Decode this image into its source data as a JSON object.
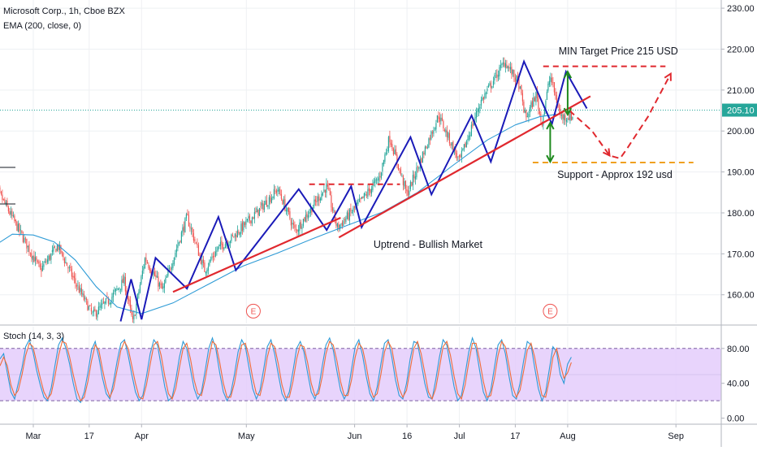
{
  "header": {
    "symbol_line": "Microsoft Corp., 1h, Cboe BZX",
    "ema_line": "EMA (200, close, 0)",
    "stoch_line": "Stoch (14, 3, 3)"
  },
  "colors": {
    "up_candle": "#26a69a",
    "down_candle": "#ef5350",
    "ema": "#2e9bd6",
    "pattern": "#1a1ab8",
    "trendline": "#e0282e",
    "support": "#f0a020",
    "target_arrow": "#1e8a1e",
    "stoch_fill": "#e4cdfb",
    "last_price_badge": "#26a69a"
  },
  "chart_data": [
    {
      "type": "candlestick",
      "title": "Microsoft Corp., 1h, Cboe BZX",
      "ylim": [
        153,
        232
      ],
      "y_ticks": [
        "230.00",
        "220.00",
        "210.00",
        "200.00",
        "190.00",
        "180.00",
        "170.00",
        "160.00"
      ],
      "y_tick_values": [
        230,
        220,
        210,
        200,
        190,
        180,
        170,
        160
      ],
      "last_price": 205.1,
      "last_price_label": "205.10",
      "x_labels": [
        "Mar",
        "17",
        "Apr",
        "May",
        "Jun",
        "16",
        "Jul",
        "17",
        "Aug",
        "Sep"
      ],
      "x_label_days": [
        0,
        16,
        31,
        61,
        92,
        107,
        122,
        138,
        153,
        184
      ],
      "price_path": [
        {
          "day": -12,
          "price": 188
        },
        {
          "day": -8,
          "price": 182
        },
        {
          "day": -3,
          "price": 174
        },
        {
          "day": 2,
          "price": 166
        },
        {
          "day": 7,
          "price": 172
        },
        {
          "day": 12,
          "price": 163
        },
        {
          "day": 17,
          "price": 155
        },
        {
          "day": 22,
          "price": 159
        },
        {
          "day": 26,
          "price": 163.5
        },
        {
          "day": 28.5,
          "price": 153
        },
        {
          "day": 32,
          "price": 169
        },
        {
          "day": 37,
          "price": 161
        },
        {
          "day": 44,
          "price": 179
        },
        {
          "day": 49,
          "price": 166
        },
        {
          "day": 53,
          "price": 171.5
        },
        {
          "day": 57,
          "price": 174
        },
        {
          "day": 65,
          "price": 181
        },
        {
          "day": 70,
          "price": 185.8
        },
        {
          "day": 75,
          "price": 175.5
        },
        {
          "day": 84,
          "price": 186.5
        },
        {
          "day": 87,
          "price": 176.3
        },
        {
          "day": 93,
          "price": 182
        },
        {
          "day": 99,
          "price": 188.5
        },
        {
          "day": 102,
          "price": 198.5
        },
        {
          "day": 107,
          "price": 184.5
        },
        {
          "day": 116,
          "price": 203.8
        },
        {
          "day": 122,
          "price": 192.5
        },
        {
          "day": 128,
          "price": 207
        },
        {
          "day": 135,
          "price": 217
        },
        {
          "day": 139,
          "price": 211.5
        },
        {
          "day": 141,
          "price": 203
        },
        {
          "day": 144,
          "price": 209
        },
        {
          "day": 145.5,
          "price": 201.7
        },
        {
          "day": 148,
          "price": 213.5
        },
        {
          "day": 151,
          "price": 203.5
        },
        {
          "day": 154.5,
          "price": 203.5
        }
      ],
      "ema": [
        {
          "day": -12,
          "price": 171.5
        },
        {
          "day": -6,
          "price": 174.8
        },
        {
          "day": 0,
          "price": 174.6
        },
        {
          "day": 6,
          "price": 172.9
        },
        {
          "day": 12,
          "price": 168.5
        },
        {
          "day": 18,
          "price": 162
        },
        {
          "day": 24,
          "price": 157
        },
        {
          "day": 31,
          "price": 155.4
        },
        {
          "day": 40,
          "price": 158
        },
        {
          "day": 50,
          "price": 162.5
        },
        {
          "day": 60,
          "price": 167
        },
        {
          "day": 70,
          "price": 170.2
        },
        {
          "day": 80,
          "price": 173.7
        },
        {
          "day": 90,
          "price": 177
        },
        {
          "day": 100,
          "price": 180.2
        },
        {
          "day": 110,
          "price": 185
        },
        {
          "day": 120,
          "price": 191.5
        },
        {
          "day": 130,
          "price": 197.8
        },
        {
          "day": 138,
          "price": 201.5
        },
        {
          "day": 145,
          "price": 203.5
        },
        {
          "day": 151,
          "price": 204.2
        }
      ],
      "annotations": {
        "zigzag": [
          {
            "day": 25,
            "price": 153.5
          },
          {
            "day": 28,
            "price": 163.8
          },
          {
            "day": 31,
            "price": 154
          },
          {
            "day": 35,
            "price": 169
          },
          {
            "day": 44,
            "price": 161.5
          },
          {
            "day": 53,
            "price": 179
          },
          {
            "day": 58,
            "price": 166
          },
          {
            "day": 76,
            "price": 185.8
          },
          {
            "day": 84,
            "price": 175.8
          },
          {
            "day": 91,
            "price": 186.5
          },
          {
            "day": 94,
            "price": 176.5
          },
          {
            "day": 108,
            "price": 198.5
          },
          {
            "day": 114,
            "price": 184.5
          },
          {
            "day": 125.5,
            "price": 203.8
          },
          {
            "day": 131,
            "price": 192.5
          },
          {
            "day": 140.5,
            "price": 217
          },
          {
            "day": 148.5,
            "price": 201.7
          },
          {
            "day": 152.5,
            "price": 214.5
          },
          {
            "day": 158.5,
            "price": 205.5
          }
        ],
        "trendline_1": [
          {
            "day": 40,
            "price": 160.7
          },
          {
            "day": 88,
            "price": 178.8
          }
        ],
        "trendline_2": [
          {
            "day": 87.5,
            "price": 174
          },
          {
            "day": 159.5,
            "price": 208.5
          }
        ],
        "resistance_1": [
          {
            "day": 79,
            "price": 187
          },
          {
            "day": 105,
            "price": 187
          }
        ],
        "target_line": [
          {
            "day": 146,
            "price": 215.8
          },
          {
            "day": 181,
            "price": 215.8
          }
        ],
        "support_line": [
          {
            "day": 143,
            "price": 192.3
          },
          {
            "day": 189,
            "price": 192.3
          }
        ],
        "projection": [
          {
            "day": 153.5,
            "price": 205
          },
          {
            "day": 160,
            "price": 200
          },
          {
            "day": 165,
            "price": 194
          },
          {
            "day": 168,
            "price": 193.3
          },
          {
            "day": 170,
            "price": 195.7
          },
          {
            "day": 176,
            "price": 203.5
          },
          {
            "day": 182.5,
            "price": 214
          }
        ],
        "target_arrow_up": [
          {
            "day": 153,
            "price": 204
          },
          {
            "day": 153,
            "price": 214.5
          }
        ],
        "target_arrow_down": [
          {
            "day": 148,
            "price": 202
          },
          {
            "day": 148,
            "price": 192.5
          }
        ],
        "earnings_markers": [
          {
            "day": 63,
            "price": 156
          },
          {
            "day": 148,
            "price": 156
          }
        ],
        "earnings_label": "E",
        "label_target": {
          "text": "MIN Target Price 215 USD",
          "day": 167.5,
          "price": 218.7
        },
        "label_support": {
          "text": "Support - Approx 192 usd",
          "day": 166.5,
          "price": 188.5
        },
        "label_uptrend": {
          "text": "Uptrend - Bullish Market",
          "day": 113,
          "price": 171.5
        }
      }
    },
    {
      "type": "line",
      "title": "Stoch (14, 3, 3)",
      "ylim": [
        -6,
        105
      ],
      "y_ticks": [
        "80.00",
        "40.00",
        "0.00"
      ],
      "y_tick_values": [
        80,
        40,
        0
      ],
      "band": [
        20,
        80
      ],
      "series": [
        {
          "color": "#2e9bd6",
          "values": [
            68,
            74,
            52,
            30,
            22,
            40,
            58,
            82,
            90,
            76,
            55,
            38,
            24,
            20,
            35,
            60,
            84,
            92,
            80,
            62,
            40,
            22,
            18,
            30,
            52,
            78,
            88,
            70,
            46,
            28,
            22,
            42,
            66,
            86,
            90,
            72,
            50,
            30,
            20,
            26,
            48,
            74,
            90,
            84,
            60,
            36,
            20,
            24,
            44,
            70,
            88,
            80,
            56,
            34,
            22,
            30,
            54,
            80,
            92,
            78,
            52,
            30,
            20,
            28,
            50,
            76,
            90,
            82,
            58,
            34,
            22,
            32,
            56,
            82,
            90,
            74,
            50,
            28,
            20,
            30,
            54,
            80,
            88,
            76,
            52,
            30,
            22,
            34,
            60,
            84,
            92,
            78,
            54,
            32,
            22,
            30,
            56,
            82,
            90,
            72,
            48,
            28,
            20,
            36,
            62,
            86,
            90,
            70,
            44,
            26,
            22,
            40,
            68,
            88,
            86,
            64,
            40,
            24,
            22,
            44,
            70,
            90,
            84,
            60,
            36,
            20,
            26,
            50,
            76,
            92,
            80,
            54,
            30,
            20,
            32,
            58,
            84,
            90,
            74,
            48,
            26,
            22,
            40,
            66,
            88,
            84,
            58,
            34,
            20,
            30,
            56,
            82,
            76,
            50,
            40,
            62,
            70
          ]
        },
        {
          "color": "#ef6c3a",
          "values": [
            60,
            70,
            60,
            38,
            26,
            32,
            50,
            72,
            86,
            82,
            64,
            46,
            30,
            22,
            28,
            48,
            72,
            88,
            86,
            70,
            50,
            32,
            20,
            24,
            42,
            66,
            84,
            78,
            56,
            36,
            24,
            34,
            56,
            78,
            88,
            80,
            60,
            40,
            24,
            22,
            38,
            62,
            84,
            88,
            72,
            48,
            28,
            22,
            34,
            58,
            80,
            86,
            68,
            44,
            28,
            26,
            44,
            68,
            88,
            84,
            64,
            40,
            24,
            24,
            40,
            64,
            84,
            86,
            70,
            46,
            28,
            26,
            44,
            70,
            86,
            82,
            62,
            38,
            24,
            24,
            42,
            68,
            84,
            82,
            64,
            40,
            26,
            28,
            48,
            74,
            88,
            84,
            66,
            42,
            26,
            26,
            44,
            70,
            86,
            80,
            60,
            36,
            24,
            28,
            50,
            76,
            88,
            80,
            56,
            34,
            24,
            32,
            56,
            80,
            88,
            74,
            52,
            30,
            22,
            34,
            58,
            82,
            88,
            72,
            48,
            28,
            22,
            38,
            64,
            86,
            86,
            66,
            42,
            24,
            26,
            46,
            72,
            88,
            82,
            60,
            36,
            24,
            32,
            54,
            78,
            86,
            70,
            46,
            26,
            24,
            44,
            70,
            80,
            62,
            46,
            52,
            64
          ]
        }
      ]
    }
  ]
}
